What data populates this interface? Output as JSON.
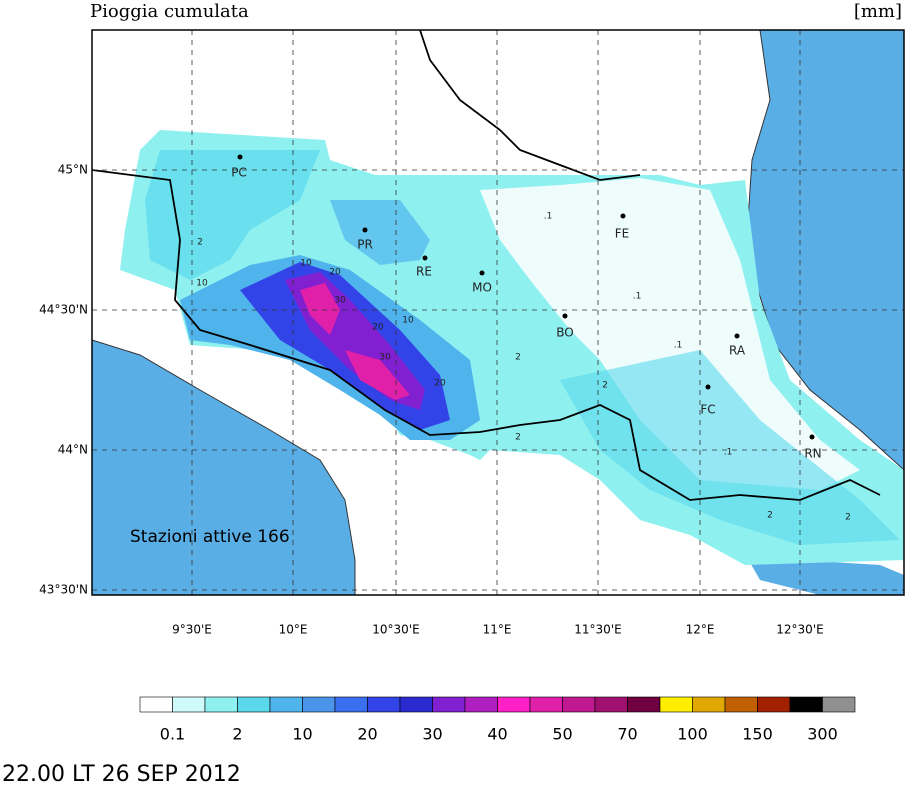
{
  "header": {
    "title": "Pioggia cumulata",
    "unit": "[mm]"
  },
  "map": {
    "lat_labels": [
      "45°N",
      "44°30'N",
      "44°N",
      "43°30'N"
    ],
    "lon_labels": [
      "9°30'E",
      "10°E",
      "10°30'E",
      "11°E",
      "11°30'E",
      "12°E",
      "12°30'E"
    ],
    "cities": [
      "PC",
      "PR",
      "RE",
      "MO",
      "BO",
      "FE",
      "RA",
      "FC",
      "RN"
    ],
    "contour_labels": [
      "2",
      "10",
      "10",
      "20",
      "30",
      "10",
      "20",
      "30",
      "20",
      "2",
      "2",
      "2",
      ".1",
      ".1",
      ".1",
      "2",
      "2",
      ".1"
    ],
    "stations_note": "Stazioni attive 166"
  },
  "colorbar": {
    "colors": [
      "#ffffff",
      "#cffafa",
      "#8ff0f0",
      "#5ad8ec",
      "#50b4ec",
      "#4a94ea",
      "#3a70f0",
      "#3244e8",
      "#2a2ad0",
      "#8020d0",
      "#b020c0",
      "#ff20c8",
      "#e020a8",
      "#c01890",
      "#a01070",
      "#700040",
      "#ffee00",
      "#e0a800",
      "#c06000",
      "#a02000",
      "#000000",
      "#909090"
    ],
    "labels": [
      "0.1",
      "2",
      "10",
      "20",
      "30",
      "40",
      "50",
      "70",
      "100",
      "150",
      "300"
    ]
  },
  "timestamp": "22.00 LT 26 SEP 2012"
}
